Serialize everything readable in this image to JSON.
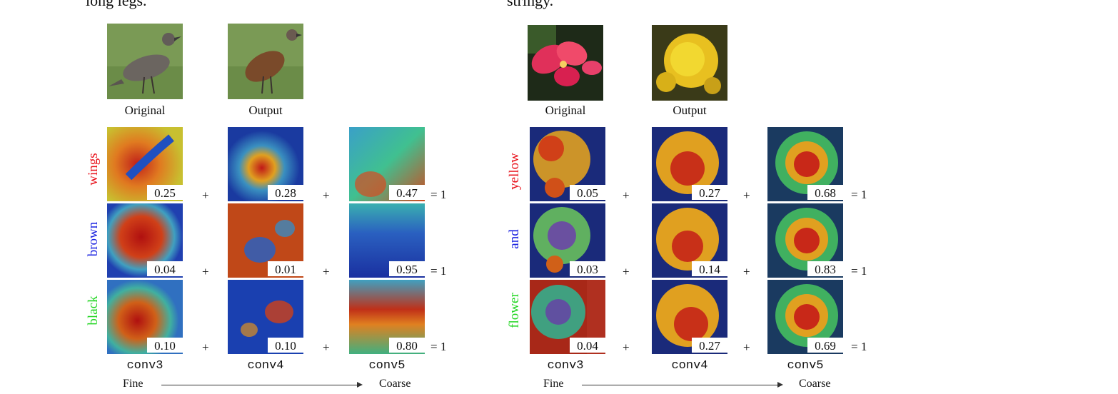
{
  "top_caption_left": "long legs.",
  "top_caption_right": "stringy.",
  "panels": [
    {
      "original_label": "Original",
      "output_label": "Output",
      "rows": [
        {
          "word": "wings",
          "color": "#e8101a",
          "weights": [
            "0.25",
            "0.28",
            "0.47"
          ],
          "sum": "= 1"
        },
        {
          "word": "brown",
          "color": "#1a22e0",
          "weights": [
            "0.04",
            "0.01",
            "0.95"
          ],
          "sum": "= 1"
        },
        {
          "word": "black",
          "color": "#22d622",
          "weights": [
            "0.10",
            "0.10",
            "0.80"
          ],
          "sum": "= 1"
        }
      ],
      "layers": [
        "conv3",
        "conv4",
        "conv5"
      ],
      "plus": "+",
      "fine": "Fine",
      "coarse": "Coarse"
    },
    {
      "original_label": "Original",
      "output_label": "Output",
      "rows": [
        {
          "word": "yellow",
          "color": "#e8101a",
          "weights": [
            "0.05",
            "0.27",
            "0.68"
          ],
          "sum": "= 1"
        },
        {
          "word": "and",
          "color": "#1a22e0",
          "weights": [
            "0.03",
            "0.14",
            "0.83"
          ],
          "sum": "= 1"
        },
        {
          "word": "flower",
          "color": "#22d622",
          "weights": [
            "0.04",
            "0.27",
            "0.69"
          ],
          "sum": "= 1"
        }
      ],
      "layers": [
        "conv3",
        "conv4",
        "conv5"
      ],
      "plus": "+",
      "fine": "Fine",
      "coarse": "Coarse"
    }
  ]
}
